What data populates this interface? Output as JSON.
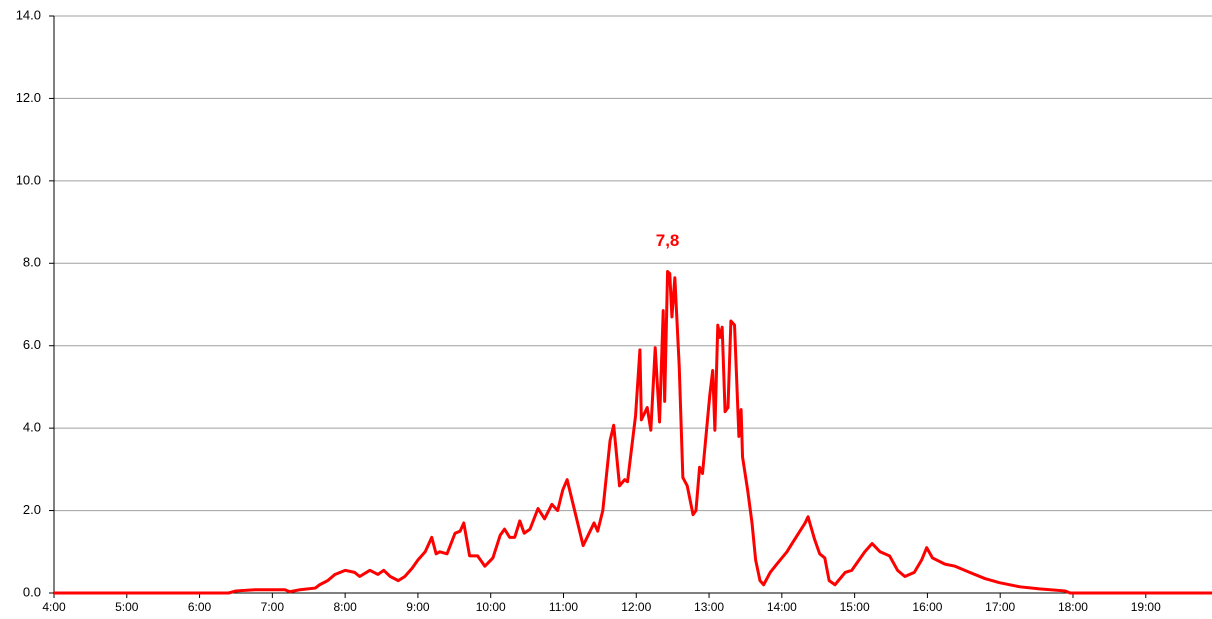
{
  "chart_data": {
    "type": "line",
    "x": [
      4.0,
      6.4,
      6.5,
      6.76,
      7.17,
      7.24,
      7.38,
      7.59,
      7.65,
      7.76,
      7.86,
      8.0,
      8.13,
      8.2,
      8.34,
      8.45,
      8.53,
      8.62,
      8.73,
      8.82,
      8.92,
      9.0,
      9.1,
      9.19,
      9.25,
      9.3,
      9.4,
      9.51,
      9.58,
      9.63,
      9.71,
      9.82,
      9.92,
      10.03,
      10.13,
      10.19,
      10.26,
      10.33,
      10.4,
      10.46,
      10.54,
      10.65,
      10.74,
      10.84,
      10.92,
      10.99,
      11.05,
      11.27,
      11.42,
      11.47,
      11.54,
      11.64,
      11.69,
      11.77,
      11.84,
      11.88,
      11.99,
      12.05,
      12.07,
      12.15,
      12.2,
      12.26,
      12.32,
      12.37,
      12.39,
      12.43,
      12.46,
      12.49,
      12.53,
      12.59,
      12.64,
      12.7,
      12.78,
      12.82,
      12.87,
      12.91,
      13.01,
      13.05,
      13.08,
      13.12,
      13.15,
      13.18,
      13.22,
      13.26,
      13.3,
      13.35,
      13.41,
      13.44,
      13.46,
      13.53,
      13.59,
      13.64,
      13.7,
      13.75,
      13.84,
      13.93,
      14.07,
      14.14,
      14.32,
      14.36,
      14.45,
      14.52,
      14.59,
      14.65,
      14.73,
      14.87,
      14.96,
      15.14,
      15.24,
      15.35,
      15.48,
      15.59,
      15.69,
      15.82,
      15.92,
      15.99,
      16.07,
      16.24,
      16.38,
      16.58,
      16.79,
      16.99,
      17.27,
      17.54,
      17.89,
      17.96,
      19.91
    ],
    "series": [
      {
        "color": "#ff0000",
        "values": [
          0,
          0,
          0.05,
          0.08,
          0.08,
          0.03,
          0.08,
          0.12,
          0.2,
          0.3,
          0.45,
          0.55,
          0.5,
          0.4,
          0.55,
          0.45,
          0.55,
          0.4,
          0.3,
          0.4,
          0.6,
          0.8,
          1.0,
          1.35,
          0.95,
          1.0,
          0.95,
          1.45,
          1.5,
          1.7,
          0.9,
          0.9,
          0.65,
          0.85,
          1.4,
          1.55,
          1.35,
          1.35,
          1.75,
          1.45,
          1.55,
          2.05,
          1.8,
          2.15,
          2.0,
          2.5,
          2.75,
          1.15,
          1.7,
          1.5,
          2.0,
          3.7,
          4.07,
          2.6,
          2.75,
          2.7,
          4.3,
          5.9,
          4.2,
          4.5,
          3.95,
          5.95,
          4.15,
          6.85,
          4.65,
          7.8,
          7.75,
          6.7,
          7.65,
          5.5,
          2.8,
          2.6,
          1.9,
          2.0,
          3.05,
          2.9,
          4.8,
          5.4,
          3.95,
          6.5,
          6.2,
          6.45,
          4.4,
          4.5,
          6.6,
          6.5,
          3.8,
          4.45,
          3.3,
          2.5,
          1.7,
          0.8,
          0.3,
          0.2,
          0.5,
          0.7,
          1.0,
          1.2,
          1.7,
          1.85,
          1.3,
          0.95,
          0.85,
          0.3,
          0.2,
          0.5,
          0.55,
          1.0,
          1.2,
          1.0,
          0.9,
          0.55,
          0.4,
          0.5,
          0.8,
          1.1,
          0.85,
          0.7,
          0.65,
          0.5,
          0.35,
          0.25,
          0.15,
          0.1,
          0.05,
          0,
          0
        ],
        "value_labels": [
          null,
          null,
          null,
          null,
          null,
          null,
          null,
          null,
          null,
          null,
          null,
          null,
          null,
          null,
          null,
          null,
          null,
          null,
          null,
          null,
          null,
          null,
          null,
          null,
          null,
          null,
          null,
          null,
          null,
          null,
          null,
          null,
          null,
          null,
          null,
          null,
          null,
          null,
          null,
          null,
          null,
          null,
          null,
          null,
          null,
          null,
          null,
          null,
          null,
          null,
          null,
          null,
          null,
          null,
          null,
          null,
          null,
          null,
          null,
          null,
          null,
          null,
          null,
          null,
          null,
          "7,8",
          null,
          null,
          null,
          null,
          null,
          null,
          null,
          null,
          null,
          null,
          null,
          null,
          null,
          null,
          null,
          null,
          null,
          null,
          null,
          null,
          null,
          null,
          null,
          null,
          null,
          null,
          null,
          null,
          null,
          null,
          null,
          null,
          null,
          null,
          null,
          null,
          null,
          null,
          null,
          null,
          null,
          null,
          null,
          null,
          null,
          null,
          null,
          null,
          null,
          null,
          null,
          null,
          null,
          null,
          null,
          null,
          null,
          null,
          null,
          null,
          null
        ]
      }
    ],
    "xlim": [
      4.0,
      19.91
    ],
    "xticks": [
      {
        "value": 4,
        "label": "4:00"
      },
      {
        "value": 5,
        "label": "5:00"
      },
      {
        "value": 6,
        "label": "6:00"
      },
      {
        "value": 7,
        "label": "7:00"
      },
      {
        "value": 8,
        "label": "8:00"
      },
      {
        "value": 9,
        "label": "9:00"
      },
      {
        "value": 10,
        "label": "10:00"
      },
      {
        "value": 11,
        "label": "11:00"
      },
      {
        "value": 12,
        "label": "12:00"
      },
      {
        "value": 13,
        "label": "13:00"
      },
      {
        "value": 14,
        "label": "14:00"
      },
      {
        "value": 15,
        "label": "15:00"
      },
      {
        "value": 16,
        "label": "16:00"
      },
      {
        "value": 17,
        "label": "17:00"
      },
      {
        "value": 18,
        "label": "18:00"
      },
      {
        "value": 19,
        "label": "19:00"
      }
    ],
    "ylim": [
      0,
      14
    ],
    "yticks": [
      {
        "value": 0,
        "label": "0.0"
      },
      {
        "value": 2,
        "label": "2.0"
      },
      {
        "value": 4,
        "label": "4.0"
      },
      {
        "value": 6,
        "label": "6.0"
      },
      {
        "value": 8,
        "label": "8.0"
      },
      {
        "value": 10,
        "label": "10.0"
      },
      {
        "value": 12,
        "label": "12.0"
      },
      {
        "value": 14,
        "label": "14.0"
      }
    ],
    "grid": true
  }
}
